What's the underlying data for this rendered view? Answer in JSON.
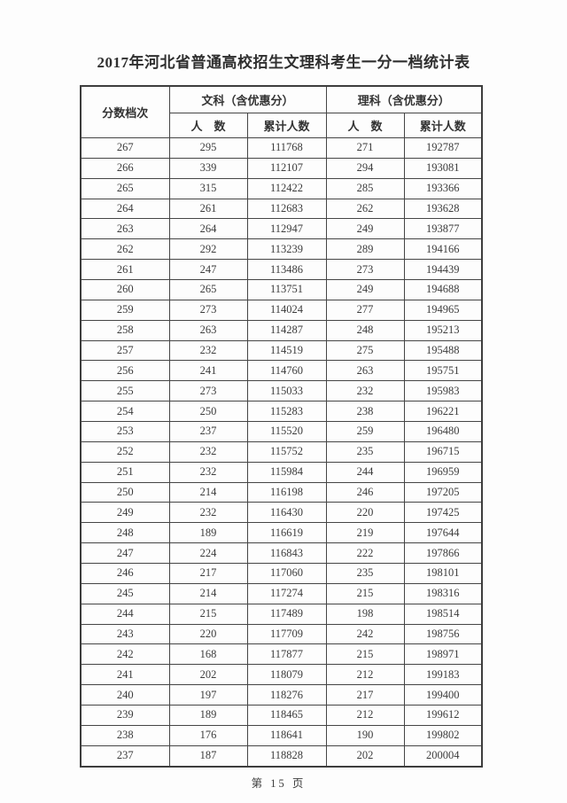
{
  "page": {
    "title": "2017年河北省普通高校招生文理科考生一分一档统计表",
    "footer": "第 15 页"
  },
  "table": {
    "headers": {
      "score_tier": "分数档次",
      "arts_group": "文科（含优惠分）",
      "science_group": "理科（含优惠分）",
      "count_label": "人　数",
      "cumulative_label": "累计人数"
    },
    "rows": [
      {
        "score": "267",
        "arts_count": "295",
        "arts_cumulative": "111768",
        "science_count": "271",
        "science_cumulative": "192787"
      },
      {
        "score": "266",
        "arts_count": "339",
        "arts_cumulative": "112107",
        "science_count": "294",
        "science_cumulative": "193081"
      },
      {
        "score": "265",
        "arts_count": "315",
        "arts_cumulative": "112422",
        "science_count": "285",
        "science_cumulative": "193366"
      },
      {
        "score": "264",
        "arts_count": "261",
        "arts_cumulative": "112683",
        "science_count": "262",
        "science_cumulative": "193628"
      },
      {
        "score": "263",
        "arts_count": "264",
        "arts_cumulative": "112947",
        "science_count": "249",
        "science_cumulative": "193877"
      },
      {
        "score": "262",
        "arts_count": "292",
        "arts_cumulative": "113239",
        "science_count": "289",
        "science_cumulative": "194166"
      },
      {
        "score": "261",
        "arts_count": "247",
        "arts_cumulative": "113486",
        "science_count": "273",
        "science_cumulative": "194439"
      },
      {
        "score": "260",
        "arts_count": "265",
        "arts_cumulative": "113751",
        "science_count": "249",
        "science_cumulative": "194688"
      },
      {
        "score": "259",
        "arts_count": "273",
        "arts_cumulative": "114024",
        "science_count": "277",
        "science_cumulative": "194965"
      },
      {
        "score": "258",
        "arts_count": "263",
        "arts_cumulative": "114287",
        "science_count": "248",
        "science_cumulative": "195213"
      },
      {
        "score": "257",
        "arts_count": "232",
        "arts_cumulative": "114519",
        "science_count": "275",
        "science_cumulative": "195488"
      },
      {
        "score": "256",
        "arts_count": "241",
        "arts_cumulative": "114760",
        "science_count": "263",
        "science_cumulative": "195751"
      },
      {
        "score": "255",
        "arts_count": "273",
        "arts_cumulative": "115033",
        "science_count": "232",
        "science_cumulative": "195983"
      },
      {
        "score": "254",
        "arts_count": "250",
        "arts_cumulative": "115283",
        "science_count": "238",
        "science_cumulative": "196221"
      },
      {
        "score": "253",
        "arts_count": "237",
        "arts_cumulative": "115520",
        "science_count": "259",
        "science_cumulative": "196480"
      },
      {
        "score": "252",
        "arts_count": "232",
        "arts_cumulative": "115752",
        "science_count": "235",
        "science_cumulative": "196715"
      },
      {
        "score": "251",
        "arts_count": "232",
        "arts_cumulative": "115984",
        "science_count": "244",
        "science_cumulative": "196959"
      },
      {
        "score": "250",
        "arts_count": "214",
        "arts_cumulative": "116198",
        "science_count": "246",
        "science_cumulative": "197205"
      },
      {
        "score": "249",
        "arts_count": "232",
        "arts_cumulative": "116430",
        "science_count": "220",
        "science_cumulative": "197425"
      },
      {
        "score": "248",
        "arts_count": "189",
        "arts_cumulative": "116619",
        "science_count": "219",
        "science_cumulative": "197644"
      },
      {
        "score": "247",
        "arts_count": "224",
        "arts_cumulative": "116843",
        "science_count": "222",
        "science_cumulative": "197866"
      },
      {
        "score": "246",
        "arts_count": "217",
        "arts_cumulative": "117060",
        "science_count": "235",
        "science_cumulative": "198101"
      },
      {
        "score": "245",
        "arts_count": "214",
        "arts_cumulative": "117274",
        "science_count": "215",
        "science_cumulative": "198316"
      },
      {
        "score": "244",
        "arts_count": "215",
        "arts_cumulative": "117489",
        "science_count": "198",
        "science_cumulative": "198514"
      },
      {
        "score": "243",
        "arts_count": "220",
        "arts_cumulative": "117709",
        "science_count": "242",
        "science_cumulative": "198756"
      },
      {
        "score": "242",
        "arts_count": "168",
        "arts_cumulative": "117877",
        "science_count": "215",
        "science_cumulative": "198971"
      },
      {
        "score": "241",
        "arts_count": "202",
        "arts_cumulative": "118079",
        "science_count": "212",
        "science_cumulative": "199183"
      },
      {
        "score": "240",
        "arts_count": "197",
        "arts_cumulative": "118276",
        "science_count": "217",
        "science_cumulative": "199400"
      },
      {
        "score": "239",
        "arts_count": "189",
        "arts_cumulative": "118465",
        "science_count": "212",
        "science_cumulative": "199612"
      },
      {
        "score": "238",
        "arts_count": "176",
        "arts_cumulative": "118641",
        "science_count": "190",
        "science_cumulative": "199802"
      },
      {
        "score": "237",
        "arts_count": "187",
        "arts_cumulative": "118828",
        "science_count": "202",
        "science_cumulative": "200004"
      }
    ]
  }
}
